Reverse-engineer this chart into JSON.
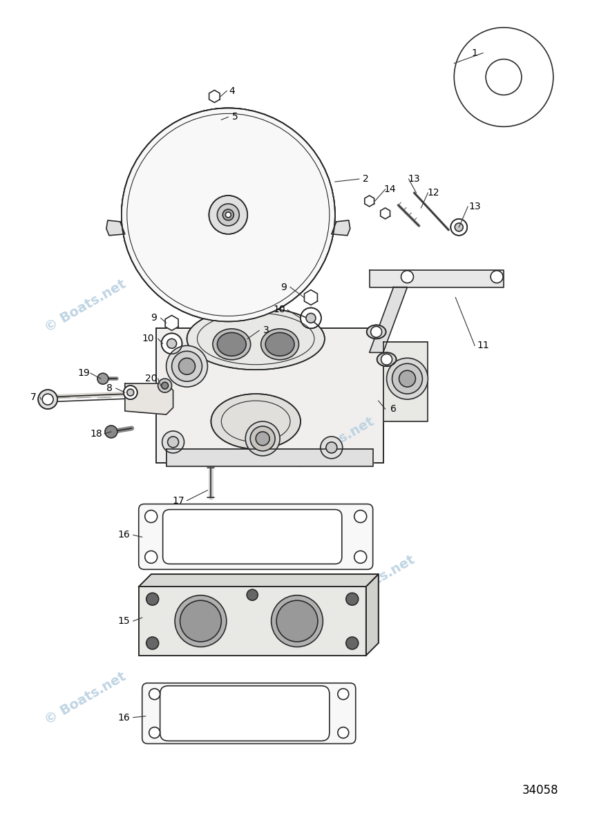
{
  "bg_color": "#ffffff",
  "line_color": "#2a2a2a",
  "label_color": "#000000",
  "watermark_color": "#b8d0e0",
  "watermark_text": "© Boats.net",
  "diagram_number": "34058",
  "figsize": [
    8.67,
    12.0
  ],
  "dpi": 100
}
